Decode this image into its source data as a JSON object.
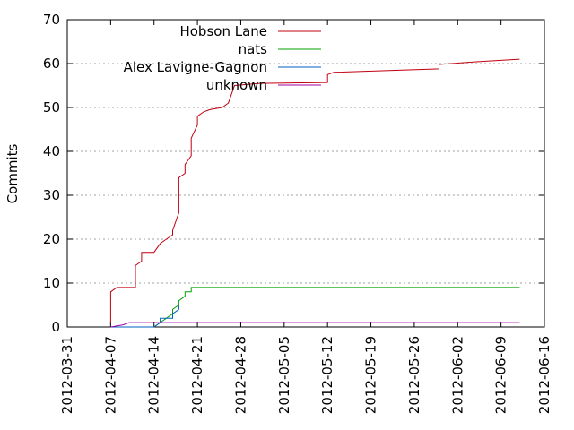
{
  "chart_data": {
    "type": "line",
    "ylabel": "Commits",
    "xlabel": "",
    "ylim": [
      0,
      70
    ],
    "xlim": [
      "2012-03-31",
      "2012-06-16"
    ],
    "grid": {
      "y": true,
      "x": false,
      "style": "dotted"
    },
    "legend_placement": "top-center",
    "y_ticks": [
      "0",
      "10",
      "20",
      "30",
      "40",
      "50",
      "60",
      "70"
    ],
    "x_ticks": [
      "2012-03-31",
      "2012-04-07",
      "2012-04-14",
      "2012-04-21",
      "2012-04-28",
      "2012-05-05",
      "2012-05-12",
      "2012-05-19",
      "2012-05-26",
      "2012-06-02",
      "2012-06-09",
      "2012-06-16"
    ],
    "series": [
      {
        "name": "Hobson Lane",
        "color": "#c0000f",
        "points": [
          [
            "2012-04-07",
            1
          ],
          [
            "2012-04-07",
            8
          ],
          [
            "2012-04-08",
            9
          ],
          [
            "2012-04-11",
            9
          ],
          [
            "2012-04-11",
            10
          ],
          [
            "2012-04-11",
            14
          ],
          [
            "2012-04-12",
            15
          ],
          [
            "2012-04-12",
            17
          ],
          [
            "2012-04-14",
            17
          ],
          [
            "2012-04-15",
            19
          ],
          [
            "2012-04-16",
            20
          ],
          [
            "2012-04-17",
            21
          ],
          [
            "2012-04-17",
            22
          ],
          [
            "2012-04-18",
            26
          ],
          [
            "2012-04-18",
            34
          ],
          [
            "2012-04-19",
            35
          ],
          [
            "2012-04-19",
            37
          ],
          [
            "2012-04-20",
            39
          ],
          [
            "2012-04-20",
            43
          ],
          [
            "2012-04-21",
            46
          ],
          [
            "2012-04-21",
            48
          ],
          [
            "2012-04-22",
            49
          ],
          [
            "2012-04-23",
            49.5
          ],
          [
            "2012-04-25",
            50
          ],
          [
            "2012-04-26",
            51
          ],
          [
            "2012-04-27",
            55
          ],
          [
            "2012-05-01",
            55.5
          ],
          [
            "2012-05-12",
            55.7
          ],
          [
            "2012-05-12",
            57.5
          ],
          [
            "2012-05-13",
            58
          ],
          [
            "2012-05-30",
            58.8
          ],
          [
            "2012-05-30",
            59.8
          ],
          [
            "2012-06-05",
            60.4
          ],
          [
            "2012-06-12",
            61
          ]
        ]
      },
      {
        "name": "nats",
        "color": "#00a000",
        "points": [
          [
            "2012-04-07",
            0
          ],
          [
            "2012-04-14",
            0
          ],
          [
            "2012-04-15",
            1
          ],
          [
            "2012-04-16",
            2
          ],
          [
            "2012-04-17",
            3
          ],
          [
            "2012-04-17",
            4
          ],
          [
            "2012-04-18",
            5
          ],
          [
            "2012-04-18",
            6
          ],
          [
            "2012-04-19",
            7
          ],
          [
            "2012-04-19",
            8
          ],
          [
            "2012-04-20",
            8
          ],
          [
            "2012-04-20",
            9
          ],
          [
            "2012-06-12",
            9
          ]
        ]
      },
      {
        "name": "Alex Lavigne-Gagnon",
        "color": "#0060c0",
        "points": [
          [
            "2012-04-07",
            0
          ],
          [
            "2012-04-14",
            0
          ],
          [
            "2012-04-15",
            1
          ],
          [
            "2012-04-15",
            2
          ],
          [
            "2012-04-17",
            2
          ],
          [
            "2012-04-17",
            3
          ],
          [
            "2012-04-18",
            4
          ],
          [
            "2012-04-18",
            5
          ],
          [
            "2012-06-12",
            5
          ]
        ]
      },
      {
        "name": "unknown",
        "color": "#a000a0",
        "points": [
          [
            "2012-04-07",
            0
          ],
          [
            "2012-04-09",
            0.5
          ],
          [
            "2012-04-10",
            1
          ],
          [
            "2012-06-12",
            1
          ]
        ]
      }
    ]
  }
}
